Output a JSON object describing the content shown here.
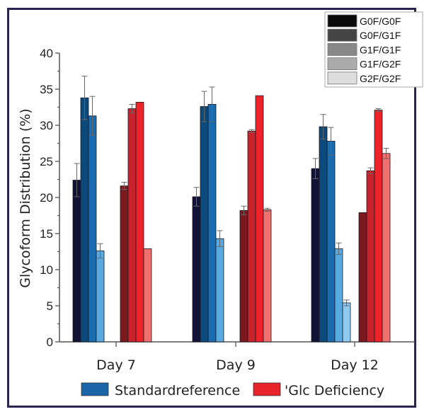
{
  "chart_data": {
    "type": "bar",
    "title": "",
    "xlabel": "",
    "ylabel": "Glycoform Distribution (%)",
    "ylim": [
      0,
      40
    ],
    "yticks": [
      0,
      5,
      10,
      15,
      20,
      25,
      30,
      35,
      40
    ],
    "categories": [
      "Day 7",
      "Day 9",
      "Day 12"
    ],
    "glycoforms": [
      {
        "name": "G0F/G0F",
        "legend_color": "#0a0a0a"
      },
      {
        "name": "G0F/G1F",
        "legend_color": "#444444"
      },
      {
        "name": "G1F/G1F",
        "legend_color": "#888888"
      },
      {
        "name": "G1F/G2F",
        "legend_color": "#aaaaaa"
      },
      {
        "name": "G2F/G2F",
        "legend_color": "#dddddd"
      }
    ],
    "groups": [
      {
        "name": "Standardreference",
        "legend_color": "#1a64a8",
        "bar_colors": [
          "#121236",
          "#0d4a7c",
          "#1a6cb0",
          "#5aa9e0",
          "#8fcaf0"
        ],
        "values": [
          [
            22.4,
            33.8,
            31.3,
            12.6,
            null
          ],
          [
            20.1,
            32.6,
            32.9,
            14.3,
            null
          ],
          [
            24.0,
            29.8,
            27.8,
            12.9,
            5.4
          ]
        ],
        "errors": [
          [
            2.3,
            3.0,
            2.7,
            1.0,
            null
          ],
          [
            1.3,
            2.1,
            2.4,
            1.1,
            null
          ],
          [
            1.4,
            1.7,
            1.9,
            0.8,
            0.4
          ]
        ]
      },
      {
        "name": "Glc Deficiency",
        "legend_color": "#e8232a",
        "bar_colors": [
          "#7a1a1e",
          "#c8232c",
          "#ee2229",
          "#f07070",
          "#f5a0a0"
        ],
        "values": [
          [
            21.6,
            32.3,
            33.2,
            12.9,
            null
          ],
          [
            18.2,
            29.2,
            34.1,
            18.3,
            null
          ],
          [
            17.9,
            23.7,
            32.1,
            26.1,
            null
          ]
        ],
        "errors": [
          [
            0.5,
            0.6,
            0.1,
            0.05,
            null
          ],
          [
            0.6,
            0.2,
            0.05,
            0.2,
            null
          ],
          [
            0.05,
            0.4,
            0.2,
            0.7,
            null
          ]
        ]
      }
    ],
    "legend_glycoforms_position": "top-right",
    "legend_groups_position": "bottom"
  }
}
